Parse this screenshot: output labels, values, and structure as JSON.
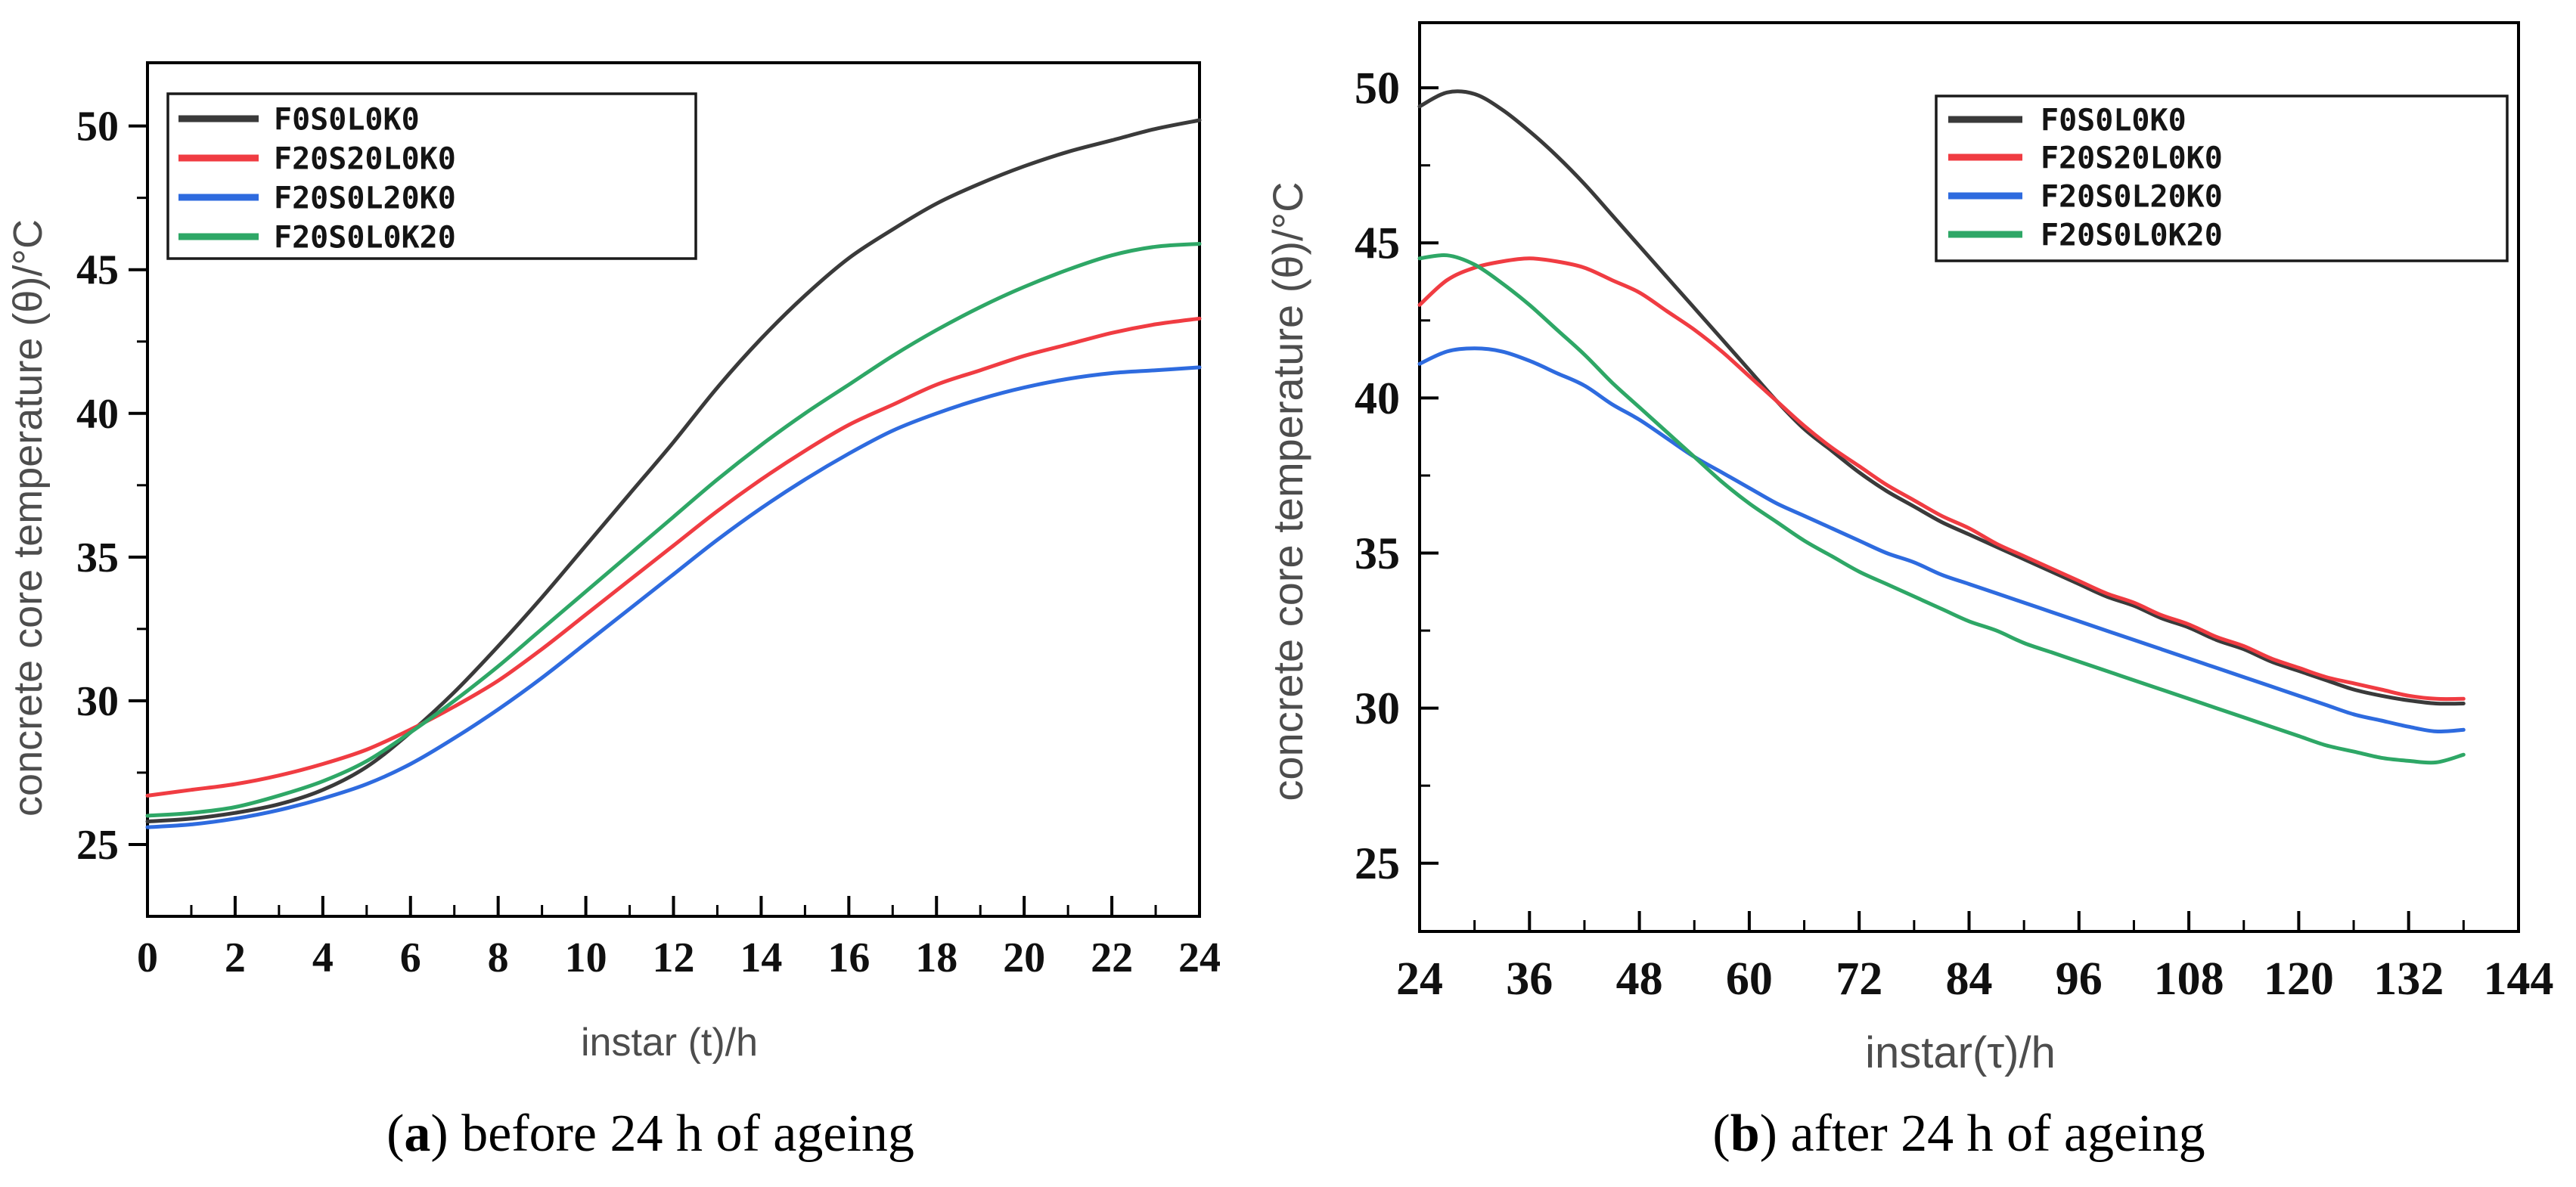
{
  "figure": {
    "background": "#ffffff",
    "captions": [
      {
        "id": "a",
        "open": "(",
        "label": "a",
        "rest": ") before 24 h of ageing"
      },
      {
        "id": "b",
        "open": "(",
        "label": "b",
        "rest": ") after 24 h of ageing"
      }
    ]
  },
  "colors": {
    "frame": "#000000",
    "tick_label": "#101010",
    "axis_title": "#4d4d4d",
    "legend_border": "#1a1a1a",
    "legend_text": "#141414",
    "caption": "#000000",
    "series_black": "#3a3a3a",
    "series_red": "#f03c42",
    "series_blue": "#2e6bdf",
    "series_green": "#2ea766"
  },
  "chart_data": [
    {
      "id": "a",
      "type": "line",
      "title": "",
      "xlabel": "instar (t)/h",
      "ylabel": "concrete core temperature (θ)/°C",
      "xlim": [
        0,
        24
      ],
      "ylim": [
        22.5,
        52.2
      ],
      "xticks": [
        0,
        2,
        4,
        6,
        8,
        10,
        12,
        14,
        16,
        18,
        20,
        22,
        24
      ],
      "yticks": [
        25,
        30,
        35,
        40,
        45,
        50
      ],
      "x_minor_step": 1,
      "y_minor_step": 2.5,
      "grid": false,
      "legend_position": "top-left",
      "series": [
        {
          "name": "F0S0L0K0",
          "color": "#3a3a3a",
          "x": [
            0,
            1,
            2,
            3,
            4,
            5,
            6,
            7,
            8,
            9,
            10,
            11,
            12,
            13,
            14,
            15,
            16,
            17,
            18,
            19,
            20,
            21,
            22,
            23,
            24
          ],
          "y": [
            25.8,
            25.9,
            26.1,
            26.4,
            26.9,
            27.7,
            28.9,
            30.3,
            31.9,
            33.6,
            35.4,
            37.2,
            39.0,
            40.9,
            42.6,
            44.1,
            45.4,
            46.4,
            47.3,
            48.0,
            48.6,
            49.1,
            49.5,
            49.9,
            50.2
          ]
        },
        {
          "name": "F20S20L0K0",
          "color": "#f03c42",
          "x": [
            0,
            1,
            2,
            3,
            4,
            5,
            6,
            7,
            8,
            9,
            10,
            11,
            12,
            13,
            14,
            15,
            16,
            17,
            18,
            19,
            20,
            21,
            22,
            23,
            24
          ],
          "y": [
            26.7,
            26.9,
            27.1,
            27.4,
            27.8,
            28.3,
            29.0,
            29.8,
            30.7,
            31.8,
            33.0,
            34.2,
            35.4,
            36.6,
            37.7,
            38.7,
            39.6,
            40.3,
            41.0,
            41.5,
            42.0,
            42.4,
            42.8,
            43.1,
            43.3
          ]
        },
        {
          "name": "F20S0L20K0",
          "color": "#2e6bdf",
          "x": [
            0,
            1,
            2,
            3,
            4,
            5,
            6,
            7,
            8,
            9,
            10,
            11,
            12,
            13,
            14,
            15,
            16,
            17,
            18,
            19,
            20,
            21,
            22,
            23,
            24
          ],
          "y": [
            25.6,
            25.7,
            25.9,
            26.2,
            26.6,
            27.1,
            27.8,
            28.7,
            29.7,
            30.8,
            32.0,
            33.2,
            34.4,
            35.6,
            36.7,
            37.7,
            38.6,
            39.4,
            40.0,
            40.5,
            40.9,
            41.2,
            41.4,
            41.5,
            41.6
          ]
        },
        {
          "name": "F20S0L0K20",
          "color": "#2ea766",
          "x": [
            0,
            1,
            2,
            3,
            4,
            5,
            6,
            7,
            8,
            9,
            10,
            11,
            12,
            13,
            14,
            15,
            16,
            17,
            18,
            19,
            20,
            21,
            22,
            23,
            24
          ],
          "y": [
            26.0,
            26.1,
            26.3,
            26.7,
            27.2,
            27.9,
            28.9,
            30.0,
            31.2,
            32.5,
            33.8,
            35.1,
            36.4,
            37.7,
            38.9,
            40.0,
            41.0,
            42.0,
            42.9,
            43.7,
            44.4,
            45.0,
            45.5,
            45.8,
            45.9
          ]
        }
      ]
    },
    {
      "id": "b",
      "type": "line",
      "title": "",
      "xlabel": "instar(τ)/h",
      "ylabel": "concrete core temperature (θ)/°C",
      "xlim": [
        24,
        144
      ],
      "ylim": [
        22.8,
        52.1
      ],
      "xticks": [
        24,
        36,
        48,
        60,
        72,
        84,
        96,
        108,
        120,
        132,
        144
      ],
      "yticks": [
        25,
        30,
        35,
        40,
        45,
        50
      ],
      "x_minor_step": 6,
      "y_minor_step": 2.5,
      "grid": false,
      "legend_position": "top-right",
      "series": [
        {
          "name": "F0S0L0K0",
          "color": "#3a3a3a",
          "x": [
            24,
            27,
            30,
            33,
            36,
            39,
            42,
            45,
            48,
            51,
            54,
            57,
            60,
            63,
            66,
            69,
            72,
            75,
            78,
            81,
            84,
            87,
            90,
            93,
            96,
            99,
            102,
            105,
            108,
            111,
            114,
            117,
            120,
            123,
            126,
            129,
            132,
            135,
            138
          ],
          "y": [
            49.4,
            49.85,
            49.8,
            49.3,
            48.6,
            47.8,
            46.9,
            45.9,
            44.9,
            43.9,
            42.9,
            41.9,
            40.9,
            39.9,
            39.0,
            38.3,
            37.6,
            37.0,
            36.5,
            36.0,
            35.6,
            35.2,
            34.8,
            34.4,
            34.0,
            33.6,
            33.3,
            32.9,
            32.6,
            32.2,
            31.9,
            31.5,
            31.2,
            30.9,
            30.6,
            30.4,
            30.25,
            30.15,
            30.15
          ]
        },
        {
          "name": "F20S20L0K0",
          "color": "#f03c42",
          "x": [
            24,
            27,
            30,
            33,
            36,
            39,
            42,
            45,
            48,
            51,
            54,
            57,
            60,
            63,
            66,
            69,
            72,
            75,
            78,
            81,
            84,
            87,
            90,
            93,
            96,
            99,
            102,
            105,
            108,
            111,
            114,
            117,
            120,
            123,
            126,
            129,
            132,
            135,
            138
          ],
          "y": [
            43.0,
            43.8,
            44.2,
            44.4,
            44.5,
            44.4,
            44.2,
            43.8,
            43.4,
            42.8,
            42.2,
            41.5,
            40.7,
            39.9,
            39.1,
            38.4,
            37.8,
            37.2,
            36.7,
            36.2,
            35.8,
            35.3,
            34.9,
            34.5,
            34.1,
            33.7,
            33.4,
            33.0,
            32.7,
            32.3,
            32.0,
            31.6,
            31.3,
            31.0,
            30.8,
            30.6,
            30.4,
            30.3,
            30.3
          ]
        },
        {
          "name": "F20S0L20K0",
          "color": "#2e6bdf",
          "x": [
            24,
            27,
            30,
            33,
            36,
            39,
            42,
            45,
            48,
            51,
            54,
            57,
            60,
            63,
            66,
            69,
            72,
            75,
            78,
            81,
            84,
            87,
            90,
            93,
            96,
            99,
            102,
            105,
            108,
            111,
            114,
            117,
            120,
            123,
            126,
            129,
            132,
            135,
            138
          ],
          "y": [
            41.1,
            41.5,
            41.6,
            41.5,
            41.2,
            40.8,
            40.4,
            39.8,
            39.3,
            38.7,
            38.1,
            37.6,
            37.1,
            36.6,
            36.2,
            35.8,
            35.4,
            35.0,
            34.7,
            34.3,
            34.0,
            33.7,
            33.4,
            33.1,
            32.8,
            32.5,
            32.2,
            31.9,
            31.6,
            31.3,
            31.0,
            30.7,
            30.4,
            30.1,
            29.8,
            29.6,
            29.4,
            29.25,
            29.3
          ]
        },
        {
          "name": "F20S0L0K20",
          "color": "#2ea766",
          "x": [
            24,
            27,
            30,
            33,
            36,
            39,
            42,
            45,
            48,
            51,
            54,
            57,
            60,
            63,
            66,
            69,
            72,
            75,
            78,
            81,
            84,
            87,
            90,
            93,
            96,
            99,
            102,
            105,
            108,
            111,
            114,
            117,
            120,
            123,
            126,
            129,
            132,
            135,
            138
          ],
          "y": [
            44.5,
            44.6,
            44.3,
            43.7,
            43.0,
            42.2,
            41.4,
            40.5,
            39.7,
            38.9,
            38.1,
            37.3,
            36.6,
            36.0,
            35.4,
            34.9,
            34.4,
            34.0,
            33.6,
            33.2,
            32.8,
            32.5,
            32.1,
            31.8,
            31.5,
            31.2,
            30.9,
            30.6,
            30.3,
            30.0,
            29.7,
            29.4,
            29.1,
            28.8,
            28.6,
            28.4,
            28.3,
            28.25,
            28.5
          ]
        }
      ]
    }
  ]
}
